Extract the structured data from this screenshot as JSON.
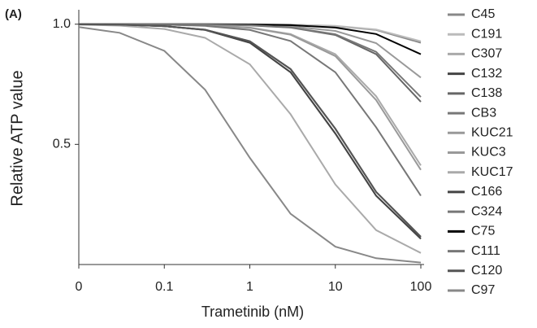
{
  "chart_data": {
    "type": "line",
    "panel_label": "(A)",
    "x_label": "Trametinib (nM)",
    "y_label": "Relative ATP value",
    "xscale": "log",
    "xlim": [
      0.01,
      100
    ],
    "xticks": [
      {
        "value": 0.01,
        "label": "0"
      },
      0.1,
      1,
      10,
      100
    ],
    "ylim": [
      0,
      1.06
    ],
    "yticks": [
      {
        "value": 1,
        "label": "1.0"
      },
      0.5
    ],
    "legend": "right",
    "x": [
      0.01,
      0.03,
      0.1,
      0.3,
      1,
      3,
      10,
      30,
      100
    ],
    "series": [
      {
        "name": "C45",
        "color": "#888888",
        "values": [
          1,
          1,
          1,
          1,
          0.999,
          0.998,
          0.992,
          0.976,
          0.923
        ]
      },
      {
        "name": "C191",
        "color": "#bbbbbb",
        "values": [
          1,
          1,
          1,
          1,
          0.999,
          0.998,
          0.993,
          0.978,
          0.929
        ]
      },
      {
        "name": "C307",
        "color": "#aaaaaa",
        "values": [
          1,
          1,
          0.999,
          0.996,
          0.986,
          0.959,
          0.875,
          0.7,
          0.412
        ]
      },
      {
        "name": "C132",
        "color": "#444444",
        "values": [
          1,
          0.998,
          0.992,
          0.977,
          0.929,
          0.813,
          0.565,
          0.302,
          0.115
        ]
      },
      {
        "name": "C138",
        "color": "#666666",
        "values": [
          1,
          1,
          1,
          0.999,
          0.995,
          0.986,
          0.955,
          0.875,
          0.677
        ]
      },
      {
        "name": "CB3",
        "color": "#777777",
        "values": [
          0.999,
          0.998,
          0.992,
          0.976,
          0.923,
          0.8,
          0.545,
          0.286,
          0.107
        ]
      },
      {
        "name": "KUC21",
        "color": "#999999",
        "values": [
          1,
          1,
          0.998,
          0.995,
          0.985,
          0.956,
          0.867,
          0.684,
          0.394
        ]
      },
      {
        "name": "KUC3",
        "color": "#999999",
        "values": [
          1,
          1,
          1,
          0.999,
          0.997,
          0.991,
          0.972,
          0.921,
          0.778
        ]
      },
      {
        "name": "KUC17",
        "color": "#aaaaaa",
        "values": [
          0.998,
          0.994,
          0.98,
          0.943,
          0.833,
          0.625,
          0.333,
          0.143,
          0.048
        ]
      },
      {
        "name": "C166",
        "color": "#444444",
        "values": [
          0.999,
          0.998,
          0.992,
          0.976,
          0.923,
          0.8,
          0.545,
          0.286,
          0.107
        ]
      },
      {
        "name": "C324",
        "color": "#777777",
        "values": [
          1,
          0.999,
          0.998,
          0.993,
          0.976,
          0.93,
          0.8,
          0.571,
          0.286
        ]
      },
      {
        "name": "C75",
        "color": "#000000",
        "values": [
          1,
          1,
          1,
          1,
          0.999,
          0.996,
          0.986,
          0.959,
          0.875
        ]
      },
      {
        "name": "C111",
        "color": "#777777",
        "values": [
          1,
          1,
          1,
          0.999,
          0.996,
          0.987,
          0.958,
          0.885,
          0.697
        ]
      },
      {
        "name": "C120",
        "color": "#555555",
        "values": [
          1,
          0.998,
          0.992,
          0.977,
          0.929,
          0.813,
          0.565,
          0.302,
          0.115
        ]
      },
      {
        "name": "C97",
        "color": "#888888",
        "values": [
          0.988,
          0.964,
          0.889,
          0.727,
          0.444,
          0.211,
          0.074,
          0.026,
          0.008
        ]
      }
    ]
  }
}
